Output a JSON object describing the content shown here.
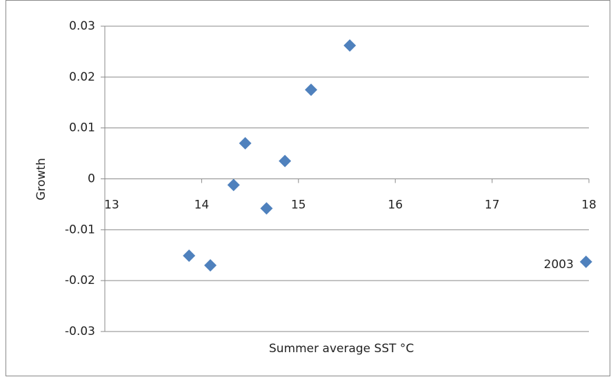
{
  "chart_data": {
    "type": "scatter",
    "x_label": "Summer  average SST °C",
    "y_label": "Growth",
    "x": [
      13.87,
      14.09,
      14.33,
      14.45,
      14.67,
      14.86,
      15.13,
      15.53,
      17.97
    ],
    "values": [
      -0.0151,
      -0.017,
      -0.0012,
      0.007,
      -0.0058,
      0.0035,
      0.0175,
      0.0262,
      -0.0163
    ],
    "color": "#4f81bd",
    "annotation": "2003",
    "xlim": [
      13,
      18
    ],
    "xticks": [
      13,
      14,
      15,
      16,
      17,
      18
    ],
    "ylim": [
      -0.03,
      0.03
    ],
    "yticks": [
      -0.03,
      -0.02,
      -0.01,
      0,
      0.01,
      0.02,
      0.03
    ],
    "grid": true
  }
}
